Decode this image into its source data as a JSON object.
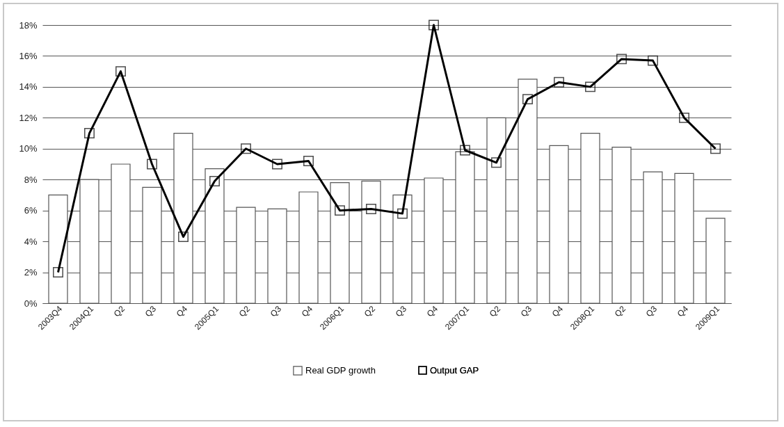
{
  "chart_data": {
    "type": "bar",
    "categories": [
      "2003Q4",
      "2004Q1",
      "Q2",
      "Q3",
      "Q4",
      "2005Q1",
      "Q2",
      "Q3",
      "Q4",
      "2006Q1",
      "Q2",
      "Q3",
      "Q4",
      "2007Q1",
      "Q2",
      "Q3",
      "Q4",
      "2008Q1",
      "Q2",
      "Q3",
      "Q4",
      "2009Q1"
    ],
    "series": [
      {
        "name": "Real GDP growth",
        "color": "#ffffff",
        "values": [
          7.0,
          8.0,
          9.0,
          7.5,
          11.0,
          8.7,
          6.2,
          6.1,
          7.2,
          7.8,
          7.9,
          7.0,
          8.1,
          9.8,
          12.0,
          14.5,
          10.2,
          11.0,
          10.1,
          8.5,
          8.4,
          5.5
        ]
      },
      {
        "name": "Output GAP",
        "type": "line",
        "color": "#000000",
        "marker": "square",
        "values": [
          2.0,
          11.0,
          15.0,
          9.0,
          4.3,
          7.9,
          10.0,
          9.0,
          9.2,
          6.0,
          6.1,
          5.8,
          18.0,
          9.9,
          9.1,
          13.2,
          14.3,
          14.0,
          15.8,
          15.7,
          12.0,
          10.0
        ]
      }
    ],
    "ylim": [
      0,
      18
    ],
    "yticks": [
      {
        "value": 0,
        "label": "0%"
      },
      {
        "value": 2,
        "label": "2%"
      },
      {
        "value": 4,
        "label": "4%"
      },
      {
        "value": 6,
        "label": "6%"
      },
      {
        "value": 8,
        "label": "8%"
      },
      {
        "value": 10,
        "label": "10%"
      },
      {
        "value": 12,
        "label": "12%"
      },
      {
        "value": 14,
        "label": "14%"
      },
      {
        "value": 16,
        "label": "16%"
      },
      {
        "value": 18,
        "label": "18%"
      }
    ],
    "grid": "y",
    "legend": "bottom"
  }
}
